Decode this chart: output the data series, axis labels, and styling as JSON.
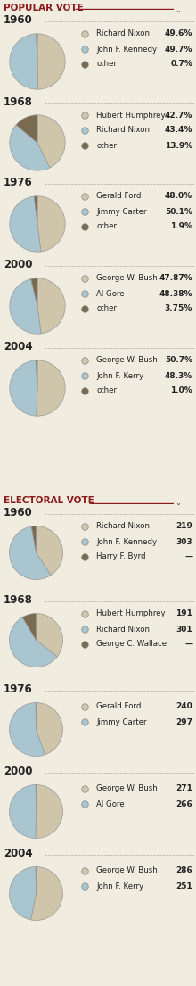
{
  "bg_color": "#f0ece0",
  "title_popular": "POPULAR VOTE",
  "title_electoral": "ELECTORAL VOTE",
  "title_color": "#8b1a1a",
  "line_color": "#8b1a1a",
  "dash_color": "#aaaaaa",
  "text_color": "#222222",
  "colors": {
    "candidate1": "#cfc5aa",
    "candidate2": "#a8c5d0",
    "other": "#7a6a50"
  },
  "popular": [
    {
      "year": "1960",
      "slices": [
        49.6,
        49.7,
        0.7
      ],
      "labels": [
        "Richard Nixon",
        "John F. Kennedy",
        "other"
      ],
      "values": [
        "49.6%",
        "49.7%",
        "0.7%"
      ]
    },
    {
      "year": "1968",
      "slices": [
        42.7,
        43.4,
        13.9
      ],
      "labels": [
        "Hubert Humphrey",
        "Richard Nixon",
        "other"
      ],
      "values": [
        "42.7%",
        "43.4%",
        "13.9%"
      ]
    },
    {
      "year": "1976",
      "slices": [
        48.0,
        50.1,
        1.9
      ],
      "labels": [
        "Gerald Ford",
        "Jimmy Carter",
        "other"
      ],
      "values": [
        "48.0%",
        "50.1%",
        "1.9%"
      ]
    },
    {
      "year": "2000",
      "slices": [
        47.87,
        48.38,
        3.75
      ],
      "labels": [
        "George W. Bush",
        "Al Gore",
        "other"
      ],
      "values": [
        "47.87%",
        "48.38%",
        "3.75%"
      ]
    },
    {
      "year": "2004",
      "slices": [
        50.7,
        48.3,
        1.0
      ],
      "labels": [
        "George W. Bush",
        "John F. Kerry",
        "other"
      ],
      "values": [
        "50.7%",
        "48.3%",
        "1.0%"
      ]
    }
  ],
  "electoral": [
    {
      "year": "1960",
      "slices": [
        219,
        303,
        15
      ],
      "labels": [
        "Richard Nixon",
        "John F. Kennedy",
        "Harry F. Byrd"
      ],
      "values": [
        "219",
        "303",
        "—"
      ],
      "n_rows": 3
    },
    {
      "year": "1968",
      "slices": [
        191,
        301,
        46
      ],
      "labels": [
        "Hubert Humphrey",
        "Richard Nixon",
        "George C. Wallace"
      ],
      "values": [
        "191",
        "301",
        "—"
      ],
      "n_rows": 3
    },
    {
      "year": "1976",
      "slices": [
        240,
        297,
        1
      ],
      "labels": [
        "Gerald Ford",
        "Jimmy Carter"
      ],
      "values": [
        "240",
        "297"
      ],
      "n_rows": 2
    },
    {
      "year": "2000",
      "slices": [
        271,
        266,
        1
      ],
      "labels": [
        "George W. Bush",
        "Al Gore"
      ],
      "values": [
        "271",
        "266"
      ],
      "n_rows": 2
    },
    {
      "year": "2004",
      "slices": [
        286,
        251,
        1
      ],
      "labels": [
        "George W. Bush",
        "John F. Kerry"
      ],
      "values": [
        "286",
        "251"
      ],
      "n_rows": 2
    }
  ]
}
